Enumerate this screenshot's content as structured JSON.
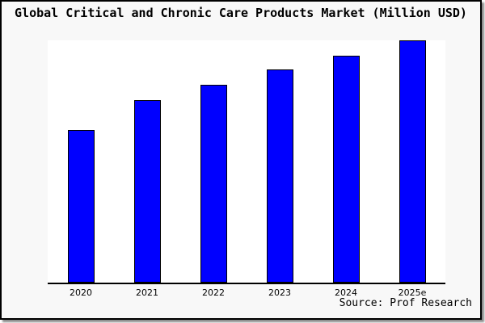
{
  "title": "Global Critical and Chronic Care Products Market (Million USD)",
  "source_note": "Source: Prof Research",
  "colors": {
    "bar_fill": "#0000ff",
    "bar_border": "#000000",
    "figure_background": "#f8f8f8",
    "plot_background": "#ffffff",
    "axis": "#000000",
    "border": "#000000"
  },
  "chart_data": {
    "type": "bar",
    "title": "Global Critical and Chronic Care Products Market (Million USD)",
    "categories": [
      "2020",
      "2021",
      "2022",
      "2023",
      "2024",
      "2025e"
    ],
    "values": [
      63.0,
      75.3,
      81.7,
      88.0,
      93.7,
      100.0
    ],
    "value_note": "no y-axis scale shown; values are bar heights relative to tallest bar (2025e = 100)",
    "xlabel": "",
    "ylabel": "",
    "ylim": [
      0,
      100
    ],
    "grid": false,
    "legend": false,
    "annotations": [
      "Source: Prof Research"
    ]
  }
}
